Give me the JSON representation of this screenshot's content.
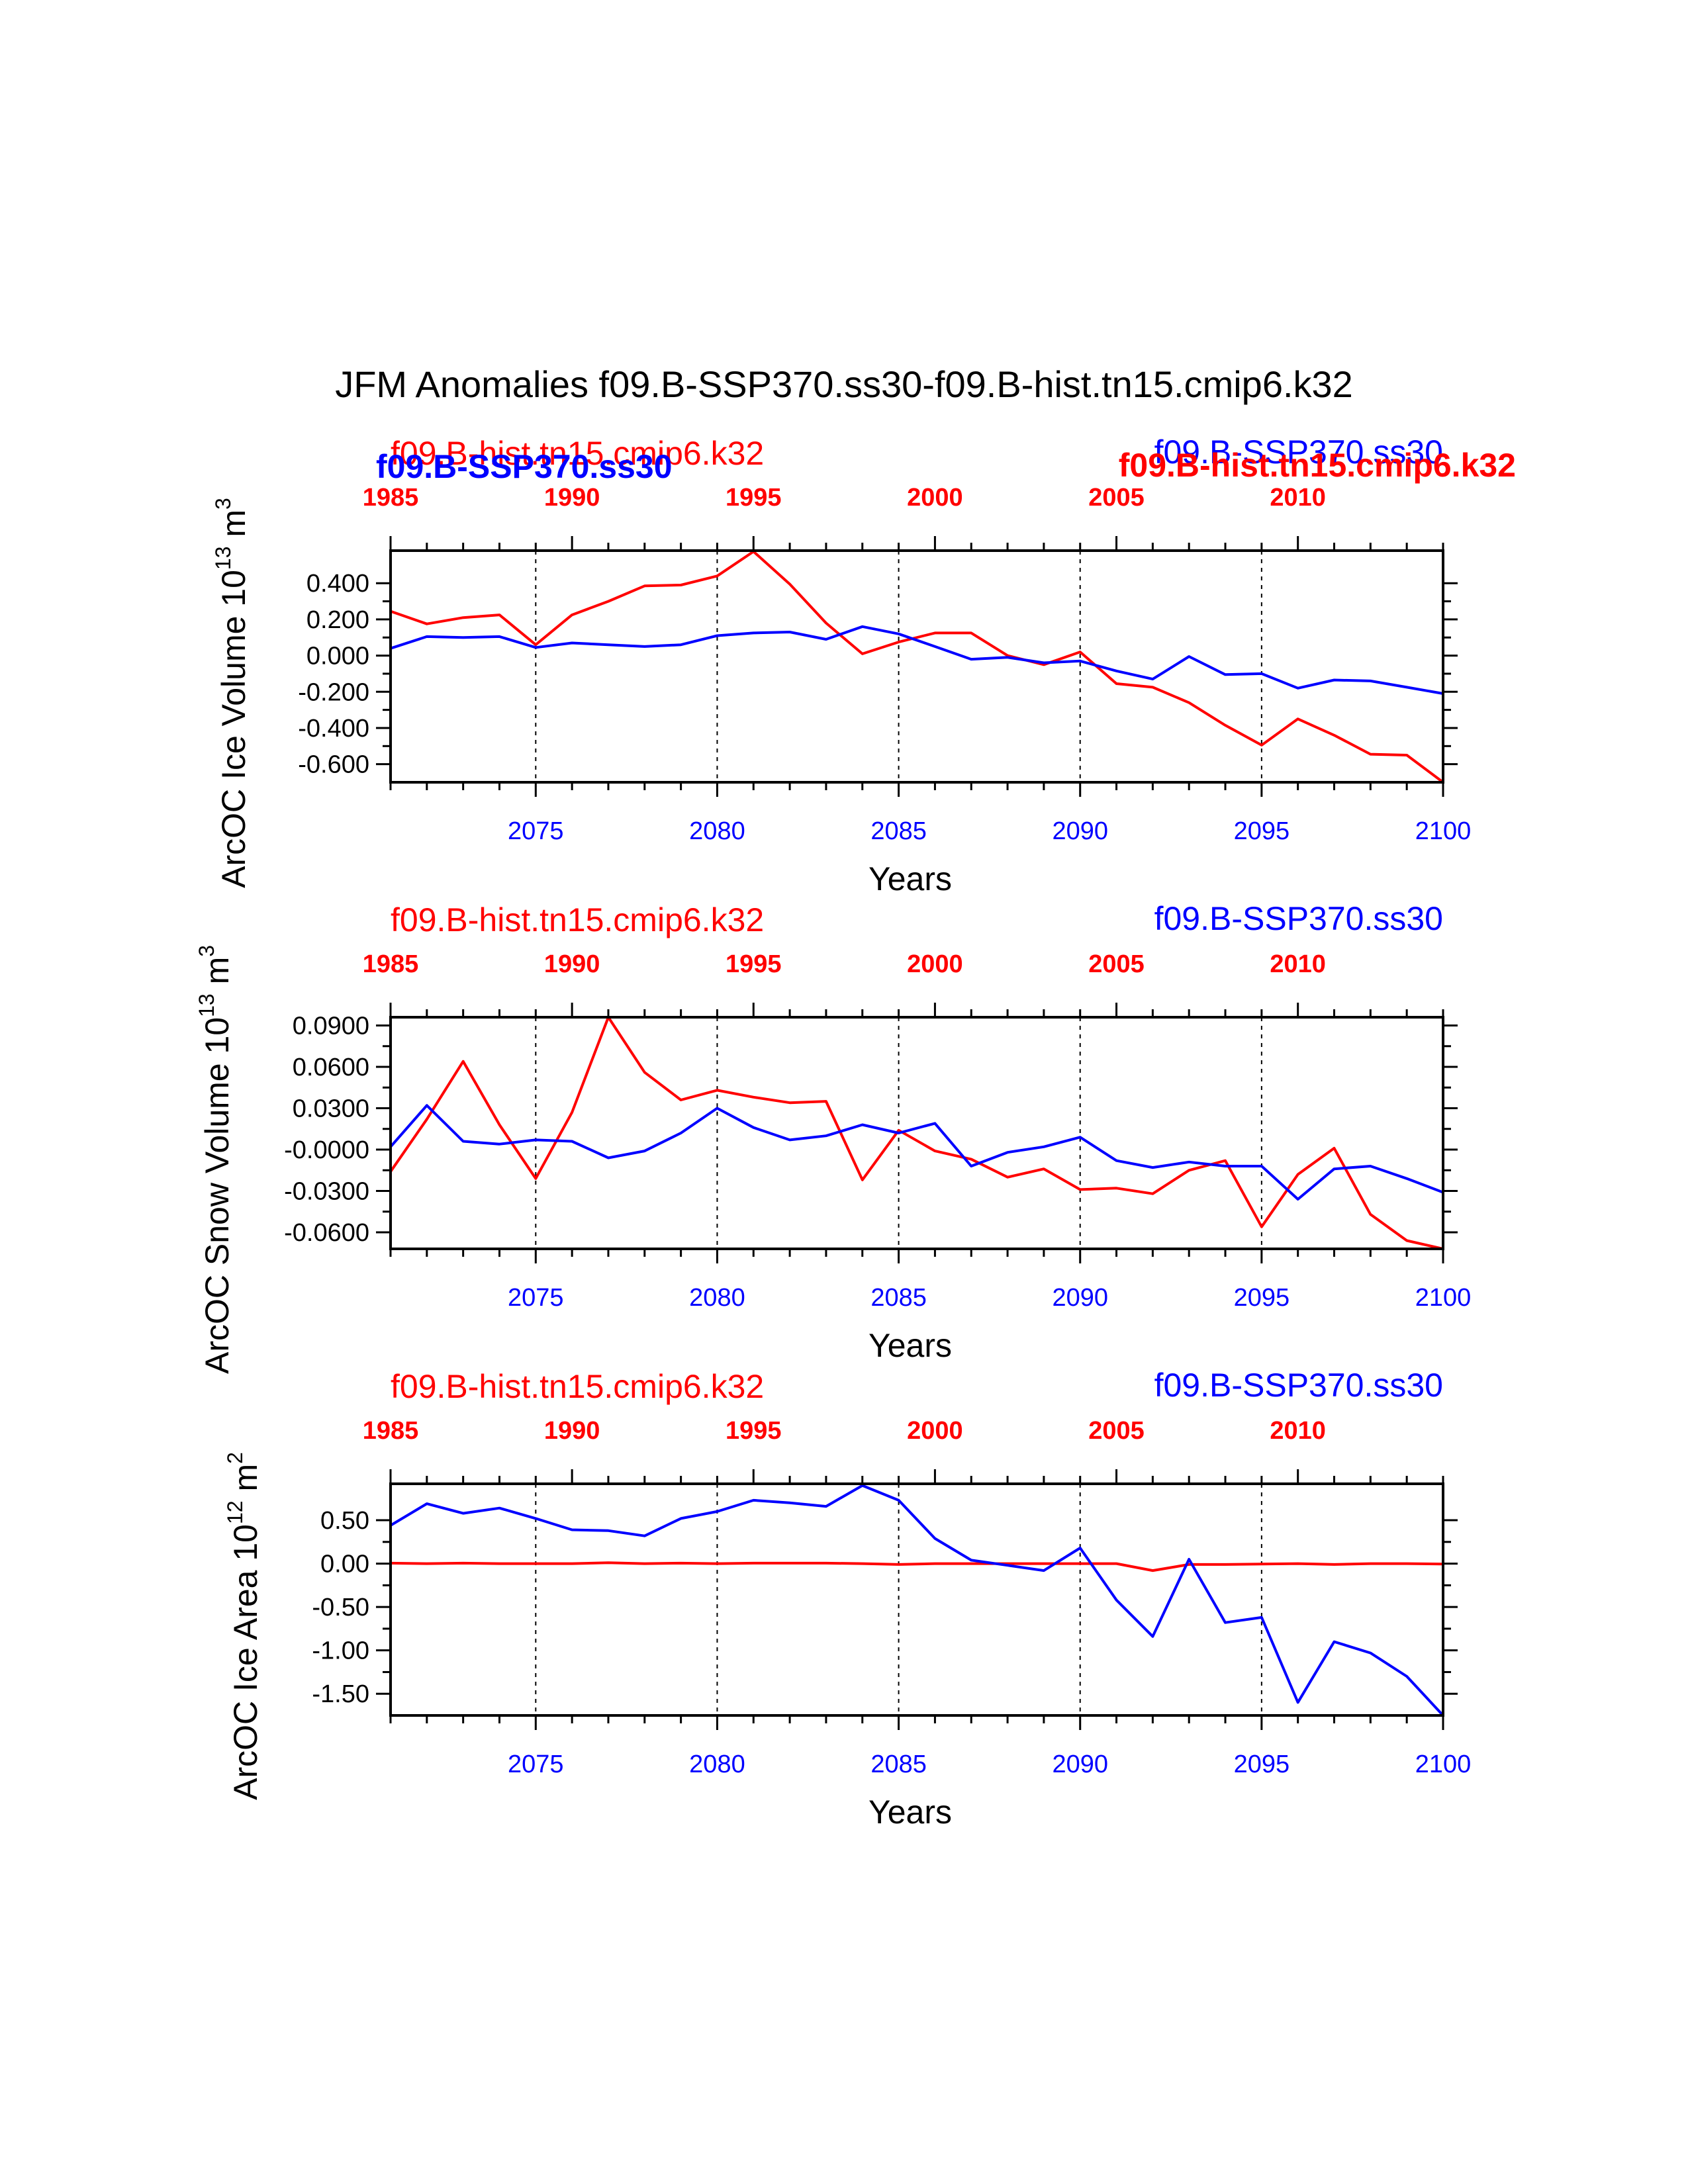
{
  "title": "JFM Anomalies f09.B-SSP370.ss30-f09.B-hist.tn15.cmip6.k32",
  "colors": {
    "blue": "#0000ff",
    "red": "#ff0000",
    "black": "#000000",
    "grid": "#000000"
  },
  "chart_data": [
    {
      "type": "line",
      "ylabel": "ArcOC Ice Volume 10",
      "ylabel_sup": "13",
      "ylabel_unit": " m",
      "ylabel_unit_sup": "3",
      "xlabel": "Years",
      "xlim": [
        2071,
        2100
      ],
      "ylim": [
        -0.7,
        0.58
      ],
      "yticks": [
        0.4,
        0.2,
        0.0,
        -0.2,
        -0.4,
        -0.6
      ],
      "ytick_labels": [
        "0.400",
        "0.200",
        "0.000",
        "-0.200",
        "-0.400",
        "-0.600"
      ],
      "xticks_bottom": [
        2075,
        2080,
        2085,
        2090,
        2095,
        2100
      ],
      "top_axis_offset": -86,
      "xticks_top": [
        1985,
        1990,
        1995,
        2000,
        2005,
        2010
      ],
      "grid_x": [
        2075,
        2080,
        2085,
        2090,
        2095
      ],
      "labels_top": {
        "red_left": "f09.B-hist.tn15.cmip6.k32",
        "blue_left_bold": "f09.B-SSP370.ss30",
        "blue_right": "f09.B-SSP370.ss30",
        "red_right_bold": "f09.B-hist.tn15.cmip6.k32"
      },
      "x": [
        2071,
        2072,
        2073,
        2074,
        2075,
        2076,
        2077,
        2078,
        2079,
        2080,
        2081,
        2082,
        2083,
        2084,
        2085,
        2086,
        2087,
        2088,
        2089,
        2090,
        2091,
        2092,
        2093,
        2094,
        2095,
        2096,
        2097,
        2098,
        2099,
        2100
      ],
      "series": [
        {
          "color": "red",
          "values": [
            0.245,
            0.175,
            0.21,
            0.225,
            0.06,
            0.225,
            0.3,
            0.385,
            0.39,
            0.44,
            0.575,
            0.395,
            0.18,
            0.01,
            0.075,
            0.125,
            0.125,
            0.0,
            -0.05,
            0.02,
            -0.155,
            -0.175,
            -0.26,
            -0.385,
            -0.495,
            -0.35,
            -0.44,
            -0.545,
            -0.55,
            -0.7
          ]
        },
        {
          "color": "blue",
          "values": [
            0.04,
            0.105,
            0.1,
            0.105,
            0.045,
            0.07,
            0.06,
            0.05,
            0.06,
            0.11,
            0.125,
            0.13,
            0.09,
            0.16,
            0.12,
            0.05,
            -0.02,
            -0.01,
            -0.04,
            -0.03,
            -0.085,
            -0.13,
            -0.005,
            -0.105,
            -0.1,
            -0.18,
            -0.135,
            -0.14,
            -0.175,
            -0.21
          ]
        }
      ]
    },
    {
      "type": "line",
      "ylabel": "ArcOC Snow Volume 10",
      "ylabel_sup": "13",
      "ylabel_unit": " m",
      "ylabel_unit_sup": "3",
      "xlabel": "Years",
      "xlim": [
        2071,
        2100
      ],
      "ylim": [
        -0.072,
        0.096
      ],
      "yticks": [
        0.09,
        0.06,
        0.03,
        0.0,
        -0.03,
        -0.06
      ],
      "ytick_labels": [
        "0.0900",
        "0.0600",
        "0.0300",
        "-0.0000",
        "-0.0300",
        "-0.0600"
      ],
      "xticks_bottom": [
        2075,
        2080,
        2085,
        2090,
        2095,
        2100
      ],
      "top_axis_offset": -86,
      "xticks_top": [
        1985,
        1990,
        1995,
        2000,
        2005,
        2010
      ],
      "grid_x": [
        2075,
        2080,
        2085,
        2090,
        2095
      ],
      "labels_top": {
        "red_left": "f09.B-hist.tn15.cmip6.k32",
        "blue_right": "f09.B-SSP370.ss30"
      },
      "x": [
        2071,
        2072,
        2073,
        2074,
        2075,
        2076,
        2077,
        2078,
        2079,
        2080,
        2081,
        2082,
        2083,
        2084,
        2085,
        2086,
        2087,
        2088,
        2089,
        2090,
        2091,
        2092,
        2093,
        2094,
        2095,
        2096,
        2097,
        2098,
        2099,
        2100
      ],
      "series": [
        {
          "color": "red",
          "values": [
            -0.016,
            0.022,
            0.064,
            0.018,
            -0.021,
            0.027,
            0.096,
            0.056,
            0.036,
            0.043,
            0.038,
            0.034,
            0.035,
            -0.022,
            0.014,
            -0.001,
            -0.007,
            -0.02,
            -0.014,
            -0.029,
            -0.028,
            -0.032,
            -0.015,
            -0.008,
            -0.056,
            -0.018,
            0.001,
            -0.047,
            -0.066,
            -0.072
          ]
        },
        {
          "color": "blue",
          "values": [
            0.002,
            0.032,
            0.006,
            0.004,
            0.007,
            0.006,
            -0.006,
            -0.001,
            0.012,
            0.03,
            0.016,
            0.007,
            0.01,
            0.018,
            0.012,
            0.019,
            -0.012,
            -0.002,
            0.002,
            0.009,
            -0.008,
            -0.013,
            -0.009,
            -0.012,
            -0.012,
            -0.036,
            -0.014,
            -0.012,
            -0.021,
            -0.031
          ]
        }
      ]
    },
    {
      "type": "line",
      "ylabel": "ArcOC Ice Area 10",
      "ylabel_sup": "12",
      "ylabel_unit": " m",
      "ylabel_unit_sup": "2",
      "xlabel": "Years",
      "xlim": [
        2071,
        2100
      ],
      "ylim": [
        -1.75,
        0.92
      ],
      "yticks": [
        0.5,
        0.0,
        -0.5,
        -1.0,
        -1.5
      ],
      "ytick_labels": [
        "0.50",
        "0.00",
        "-0.50",
        "-1.00",
        "-1.50"
      ],
      "xticks_bottom": [
        2075,
        2080,
        2085,
        2090,
        2095,
        2100
      ],
      "top_axis_offset": -86,
      "xticks_top": [
        1985,
        1990,
        1995,
        2000,
        2005,
        2010
      ],
      "grid_x": [
        2075,
        2080,
        2085,
        2090,
        2095
      ],
      "labels_top": {
        "red_left": "f09.B-hist.tn15.cmip6.k32",
        "blue_right": "f09.B-SSP370.ss30"
      },
      "x": [
        2071,
        2072,
        2073,
        2074,
        2075,
        2076,
        2077,
        2078,
        2079,
        2080,
        2081,
        2082,
        2083,
        2084,
        2085,
        2086,
        2087,
        2088,
        2089,
        2090,
        2091,
        2092,
        2093,
        2094,
        2095,
        2096,
        2097,
        2098,
        2099,
        2100
      ],
      "series": [
        {
          "color": "red",
          "values": [
            0.005,
            0.0,
            0.005,
            0.0,
            0.0,
            0.0,
            0.01,
            0.0,
            0.005,
            0.0,
            0.005,
            0.005,
            0.005,
            0.0,
            -0.01,
            0.0,
            0.0,
            0.0,
            0.0,
            0.0,
            0.0,
            -0.08,
            -0.01,
            -0.01,
            -0.005,
            0.0,
            -0.01,
            0.0,
            0.0,
            -0.005
          ]
        },
        {
          "color": "blue",
          "values": [
            0.44,
            0.69,
            0.58,
            0.64,
            0.52,
            0.39,
            0.38,
            0.32,
            0.52,
            0.6,
            0.73,
            0.7,
            0.66,
            0.9,
            0.73,
            0.29,
            0.04,
            -0.02,
            -0.08,
            0.18,
            -0.42,
            -0.84,
            0.05,
            -0.68,
            -0.62,
            -1.6,
            -0.9,
            -1.03,
            -1.3,
            -1.75
          ]
        }
      ]
    }
  ]
}
